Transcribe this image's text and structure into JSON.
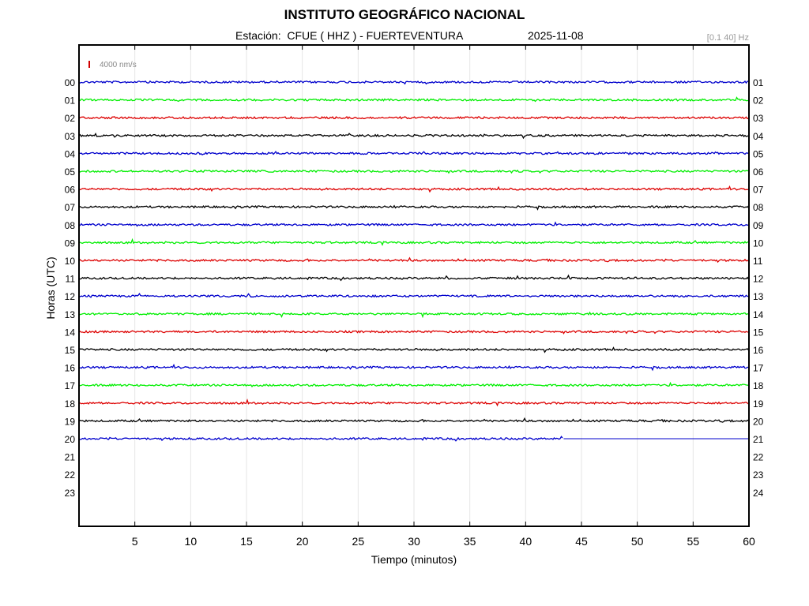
{
  "header": {
    "title": "INSTITUTO GEOGRÁFICO NACIONAL",
    "station": "Estación:  CFUE ( HHZ ) - FUERTEVENTURA",
    "date": "2025-11-08",
    "filter_band": "[0.1 40] Hz"
  },
  "chart_data": {
    "type": "line",
    "title": "INSTITUTO GEOGRÁFICO NACIONAL",
    "subtitle": "Estación:  CFUE ( HHZ ) - FUERTEVENTURA",
    "xlabel": "Tiempo (minutos)",
    "ylabel": "Horas (UTC)",
    "xlim": [
      0,
      60
    ],
    "x_ticks": [
      5,
      10,
      15,
      20,
      25,
      30,
      35,
      40,
      45,
      50,
      55,
      60
    ],
    "left_tick_labels": [
      "00",
      "01",
      "02",
      "03",
      "04",
      "05",
      "06",
      "07",
      "08",
      "09",
      "10",
      "11",
      "12",
      "13",
      "14",
      "15",
      "16",
      "17",
      "18",
      "19",
      "20",
      "21",
      "22",
      "23"
    ],
    "right_tick_labels": [
      "01",
      "02",
      "03",
      "04",
      "05",
      "06",
      "07",
      "08",
      "09",
      "10",
      "11",
      "12",
      "13",
      "14",
      "15",
      "16",
      "17",
      "18",
      "19",
      "20",
      "21",
      "22",
      "23",
      "24"
    ],
    "grid": true,
    "scale_label": "4000 nm/s",
    "scale_color": "#d00000",
    "color_cycle": [
      "#0000cc",
      "#00ee00",
      "#dd0000",
      "#000000"
    ],
    "series": [
      {
        "hour": "00",
        "end_minute": 60
      },
      {
        "hour": "01",
        "end_minute": 60
      },
      {
        "hour": "02",
        "end_minute": 60
      },
      {
        "hour": "03",
        "end_minute": 60
      },
      {
        "hour": "04",
        "end_minute": 60
      },
      {
        "hour": "05",
        "end_minute": 60
      },
      {
        "hour": "06",
        "end_minute": 60
      },
      {
        "hour": "07",
        "end_minute": 60
      },
      {
        "hour": "08",
        "end_minute": 60
      },
      {
        "hour": "09",
        "end_minute": 60
      },
      {
        "hour": "10",
        "end_minute": 60
      },
      {
        "hour": "11",
        "end_minute": 60
      },
      {
        "hour": "12",
        "end_minute": 60
      },
      {
        "hour": "13",
        "end_minute": 60
      },
      {
        "hour": "14",
        "end_minute": 60
      },
      {
        "hour": "15",
        "end_minute": 60
      },
      {
        "hour": "16",
        "end_minute": 60
      },
      {
        "hour": "17",
        "end_minute": 60
      },
      {
        "hour": "18",
        "end_minute": 60
      },
      {
        "hour": "19",
        "end_minute": 60
      },
      {
        "hour": "20",
        "end_minute": 43.4
      }
    ]
  }
}
